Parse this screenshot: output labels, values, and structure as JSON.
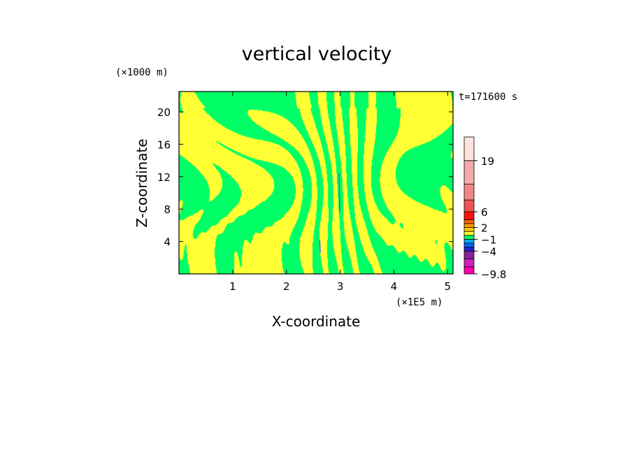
{
  "chart_data": {
    "type": "heatmap",
    "title": "vertical velocity",
    "xlabel": "X-coordinate",
    "ylabel": "Z-coordinate",
    "x_unit": "(×1E5 m)",
    "y_unit": "(×1000 m)",
    "time_label": "t=171600 s",
    "xlim": [
      0,
      5.1
    ],
    "ylim": [
      0,
      22.5
    ],
    "x_ticks": [
      1,
      2,
      3,
      4,
      5
    ],
    "y_ticks": [
      4,
      8,
      12,
      16,
      20
    ],
    "colorbar": {
      "labels": [
        "19",
        "6",
        "2",
        "−1",
        "−4",
        "−9.8"
      ],
      "label_values": [
        19,
        6,
        2,
        -1,
        -4,
        -9.8
      ],
      "range": [
        -9.8,
        25
      ]
    },
    "fill_colors": {
      "positive": "#ffff33",
      "negative": "#00ff66",
      "strong_down": "#3355ff"
    }
  }
}
